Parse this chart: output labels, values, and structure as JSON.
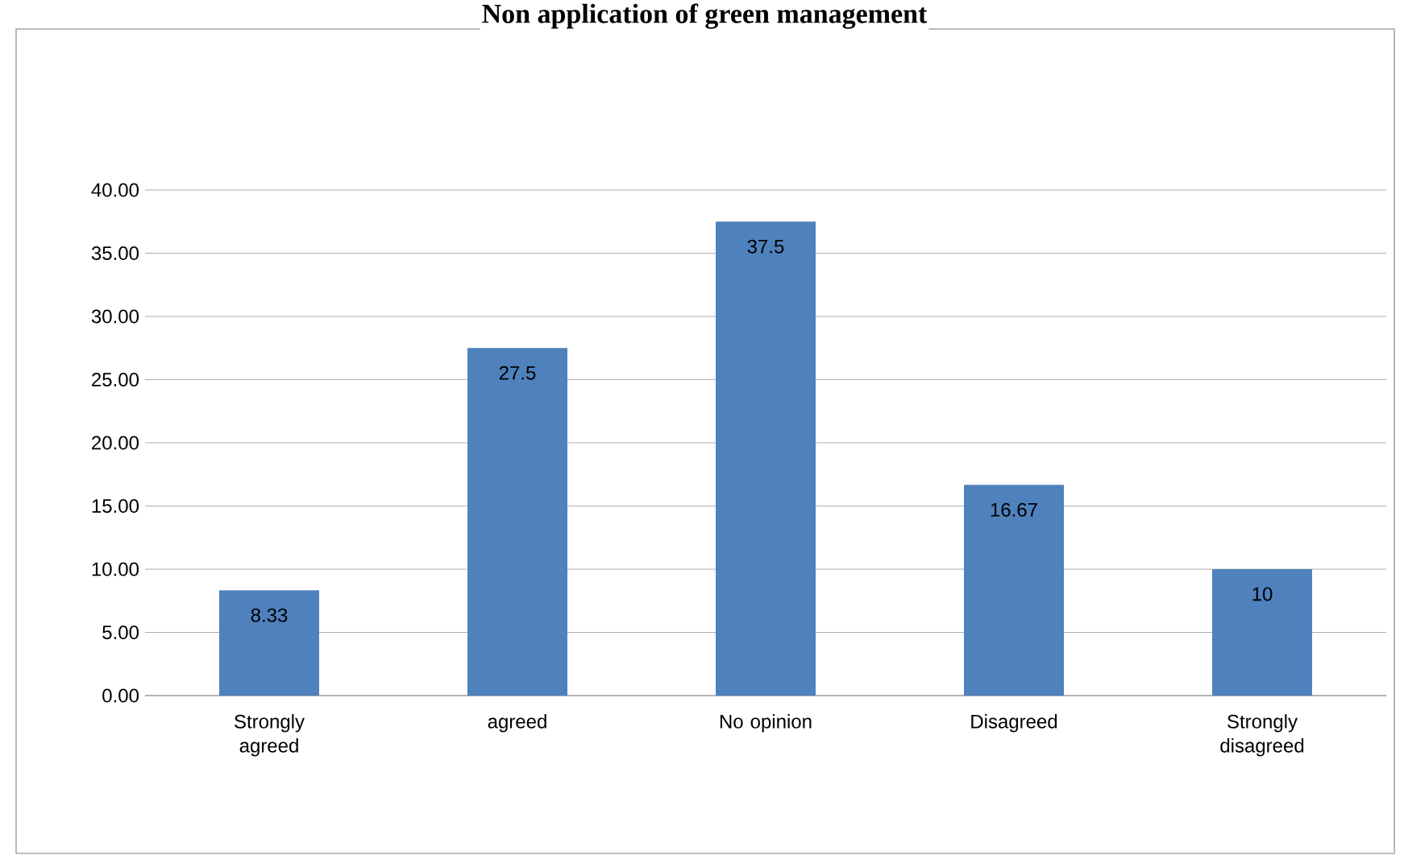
{
  "chart_data": {
    "type": "bar",
    "title": "Non application of green management",
    "categories": [
      "Strongly agreed",
      "agreed",
      "No opinion",
      "Disagreed",
      "Strongly disagreed"
    ],
    "values": [
      8.33,
      27.5,
      37.5,
      16.67,
      10
    ],
    "color": "#4f81bd",
    "ylim": [
      0,
      40
    ],
    "yticks": [
      {
        "value": 0,
        "label": "0.00"
      },
      {
        "value": 5,
        "label": "5.00"
      },
      {
        "value": 10,
        "label": "10.00"
      },
      {
        "value": 15,
        "label": "15.00"
      },
      {
        "value": 20,
        "label": "20.00"
      },
      {
        "value": 25,
        "label": "25.00"
      },
      {
        "value": 30,
        "label": "30.00"
      },
      {
        "value": 35,
        "label": "35.00"
      },
      {
        "value": 40,
        "label": "40.00"
      }
    ],
    "grid": "y",
    "data_labels": true
  }
}
